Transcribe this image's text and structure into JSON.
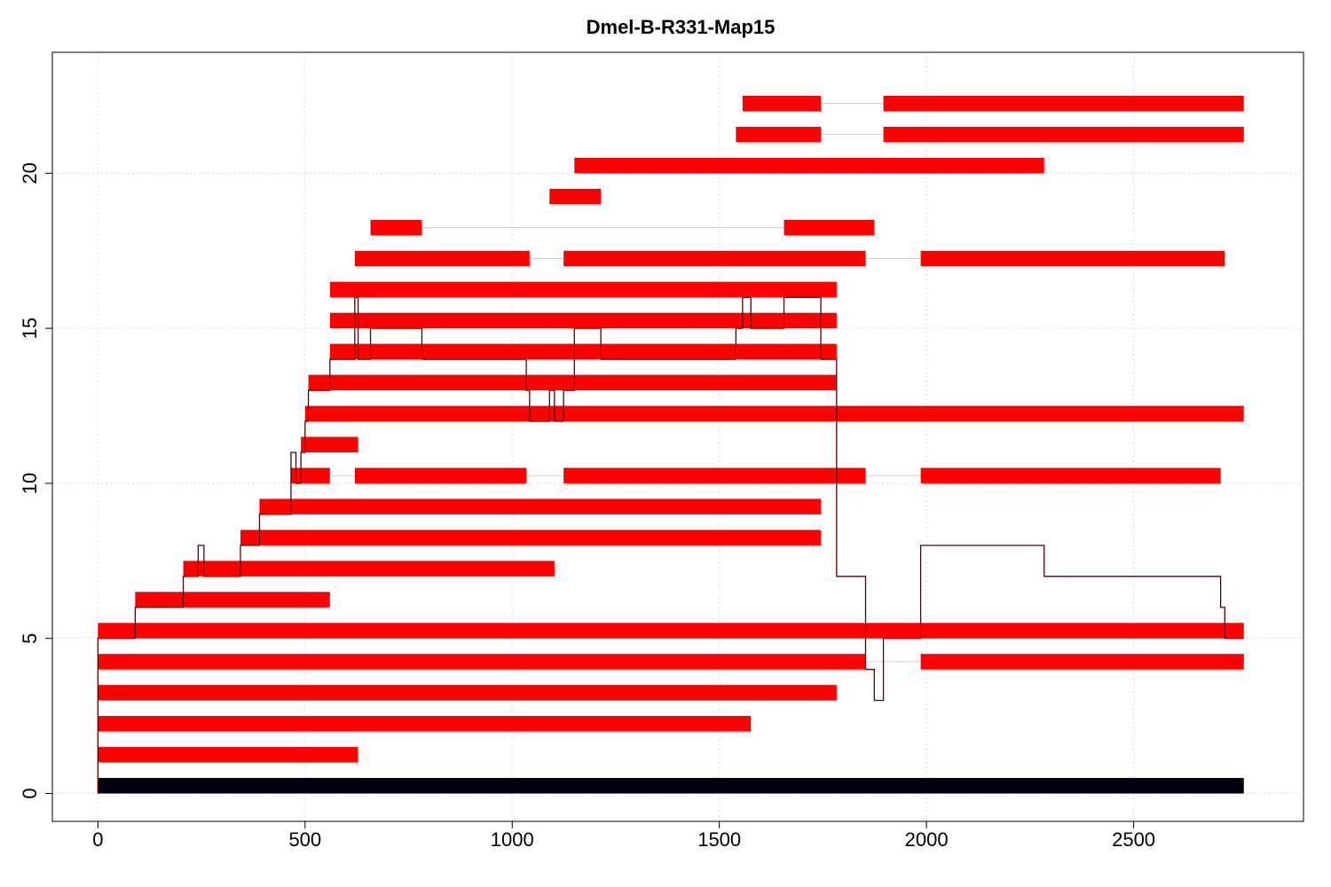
{
  "chart_data": {
    "type": "bar",
    "title": "Dmel-B-R331-Map15",
    "xlabel": "",
    "ylabel": "",
    "xlim": [
      -110,
      2910
    ],
    "ylim": [
      -0.9,
      23.9
    ],
    "xticks": [
      0,
      500,
      1000,
      1500,
      2000,
      2500
    ],
    "yticks": [
      0,
      5,
      10,
      15,
      20
    ],
    "grid": true,
    "colors": {
      "reference": "#000010",
      "alignment": "#ff0000",
      "coverage": "#550000",
      "connector": "#cfcfcf"
    },
    "reference_bar": {
      "y": 0,
      "start": 0,
      "end": 2766
    },
    "alignments": [
      {
        "y": 1,
        "segments": [
          [
            0,
            628
          ]
        ]
      },
      {
        "y": 2,
        "segments": [
          [
            0,
            1576
          ]
        ]
      },
      {
        "y": 3,
        "segments": [
          [
            0,
            1783
          ]
        ]
      },
      {
        "y": 4,
        "segments": [
          [
            0,
            1853
          ],
          [
            1986,
            2766
          ]
        ]
      },
      {
        "y": 5,
        "segments": [
          [
            0,
            2766
          ]
        ]
      },
      {
        "y": 6,
        "segments": [
          [
            90,
            560
          ]
        ]
      },
      {
        "y": 7,
        "segments": [
          [
            206,
            1102
          ]
        ]
      },
      {
        "y": 8,
        "segments": [
          [
            344,
            1745
          ]
        ]
      },
      {
        "y": 9,
        "segments": [
          [
            390,
            1745
          ]
        ]
      },
      {
        "y": 10,
        "segments": [
          [
            466,
            560
          ],
          [
            620,
            1034
          ],
          [
            1124,
            1853
          ],
          [
            1986,
            2710
          ]
        ]
      },
      {
        "y": 11,
        "segments": [
          [
            490,
            628
          ]
        ]
      },
      {
        "y": 12,
        "segments": [
          [
            500,
            2766
          ]
        ]
      },
      {
        "y": 13,
        "segments": [
          [
            508,
            1783
          ]
        ]
      },
      {
        "y": 14,
        "segments": [
          [
            560,
            1783
          ]
        ]
      },
      {
        "y": 15,
        "segments": [
          [
            560,
            1783
          ]
        ]
      },
      {
        "y": 16,
        "segments": [
          [
            560,
            1783
          ]
        ]
      },
      {
        "y": 17,
        "segments": [
          [
            620,
            1042
          ],
          [
            1124,
            1853
          ],
          [
            1986,
            2720
          ]
        ]
      },
      {
        "y": 18,
        "segments": [
          [
            658,
            782
          ],
          [
            1656,
            1874
          ]
        ]
      },
      {
        "y": 19,
        "segments": [
          [
            1090,
            1214
          ]
        ]
      },
      {
        "y": 20,
        "segments": [
          [
            1150,
            2284
          ]
        ]
      },
      {
        "y": 21,
        "segments": [
          [
            1540,
            1745
          ],
          [
            1896,
            2766
          ]
        ]
      },
      {
        "y": 22,
        "segments": [
          [
            1556,
            1745
          ],
          [
            1896,
            2766
          ]
        ]
      }
    ],
    "coverage": {
      "x": [
        0,
        90,
        206,
        242,
        256,
        344,
        390,
        466,
        478,
        490,
        500,
        508,
        560,
        620,
        628,
        658,
        782,
        1034,
        1042,
        1090,
        1102,
        1124,
        1150,
        1214,
        1540,
        1556,
        1576,
        1656,
        1745,
        1783,
        1853,
        1874,
        1896,
        1986,
        2284,
        2710,
        2720
      ],
      "y": [
        5,
        6,
        7,
        8,
        7,
        8,
        9,
        11,
        10,
        11,
        12,
        13,
        14,
        16,
        14,
        15,
        14,
        13,
        12,
        13,
        12,
        13,
        15,
        14,
        15,
        16,
        15,
        16,
        14,
        7,
        4,
        3,
        5,
        8,
        7,
        6,
        5
      ],
      "end": 2766
    }
  }
}
